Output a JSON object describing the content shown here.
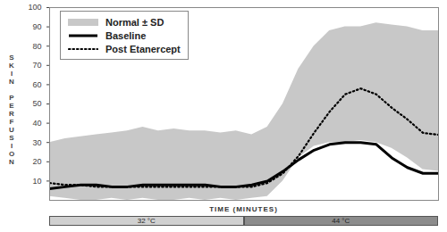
{
  "chart_data": {
    "type": "line",
    "ylabel": "SKIN PERFUSION",
    "xlabel": "TIME (MINUTES)",
    "x": [
      0,
      4,
      8,
      12,
      16,
      20,
      24,
      28,
      32,
      36,
      40,
      44,
      48,
      52,
      56,
      60,
      64,
      68,
      72,
      76,
      80,
      84,
      88,
      92,
      96,
      100
    ],
    "series": [
      {
        "name": "Normal ± SD",
        "type": "band",
        "color": "#c8c8c8",
        "lower": [
          2,
          1,
          0,
          0,
          1,
          0,
          1,
          0,
          0,
          1,
          0,
          1,
          0,
          1,
          2,
          10,
          22,
          28,
          30,
          30,
          31,
          30,
          27,
          22,
          16,
          15
        ],
        "upper": [
          30,
          32,
          33,
          34,
          35,
          36,
          38,
          36,
          37,
          36,
          36,
          35,
          36,
          34,
          38,
          50,
          68,
          80,
          88,
          90,
          90,
          92,
          91,
          90,
          88,
          88
        ]
      },
      {
        "name": "Baseline",
        "type": "line",
        "color": "#000000",
        "line_style": "solid",
        "values": [
          6,
          7,
          8,
          8,
          7,
          7,
          8,
          8,
          8,
          8,
          8,
          7,
          7,
          8,
          10,
          15,
          21,
          26,
          29,
          30,
          30,
          29,
          22,
          17,
          14,
          14
        ]
      },
      {
        "name": "Post Etanercept",
        "type": "line",
        "color": "#000000",
        "line_style": "dotted",
        "values": [
          9,
          8,
          8,
          7,
          7,
          7,
          7,
          7,
          7,
          7,
          7,
          7,
          7,
          7,
          9,
          14,
          23,
          35,
          46,
          55,
          58,
          55,
          48,
          42,
          35,
          34
        ]
      }
    ],
    "phases": [
      {
        "label": "32 °C",
        "start": 0,
        "end": 50,
        "color": "#d0d0d0"
      },
      {
        "label": "44 °C",
        "start": 50,
        "end": 100,
        "color": "#8c8c8c"
      }
    ],
    "xlim": [
      0,
      100
    ],
    "xticks": [],
    "ylim": [
      0,
      100
    ],
    "yticks": [
      10,
      20,
      30,
      40,
      50,
      60,
      70,
      80,
      90,
      100
    ],
    "tick_labels": "y",
    "grid": false,
    "legend": "top-left"
  }
}
